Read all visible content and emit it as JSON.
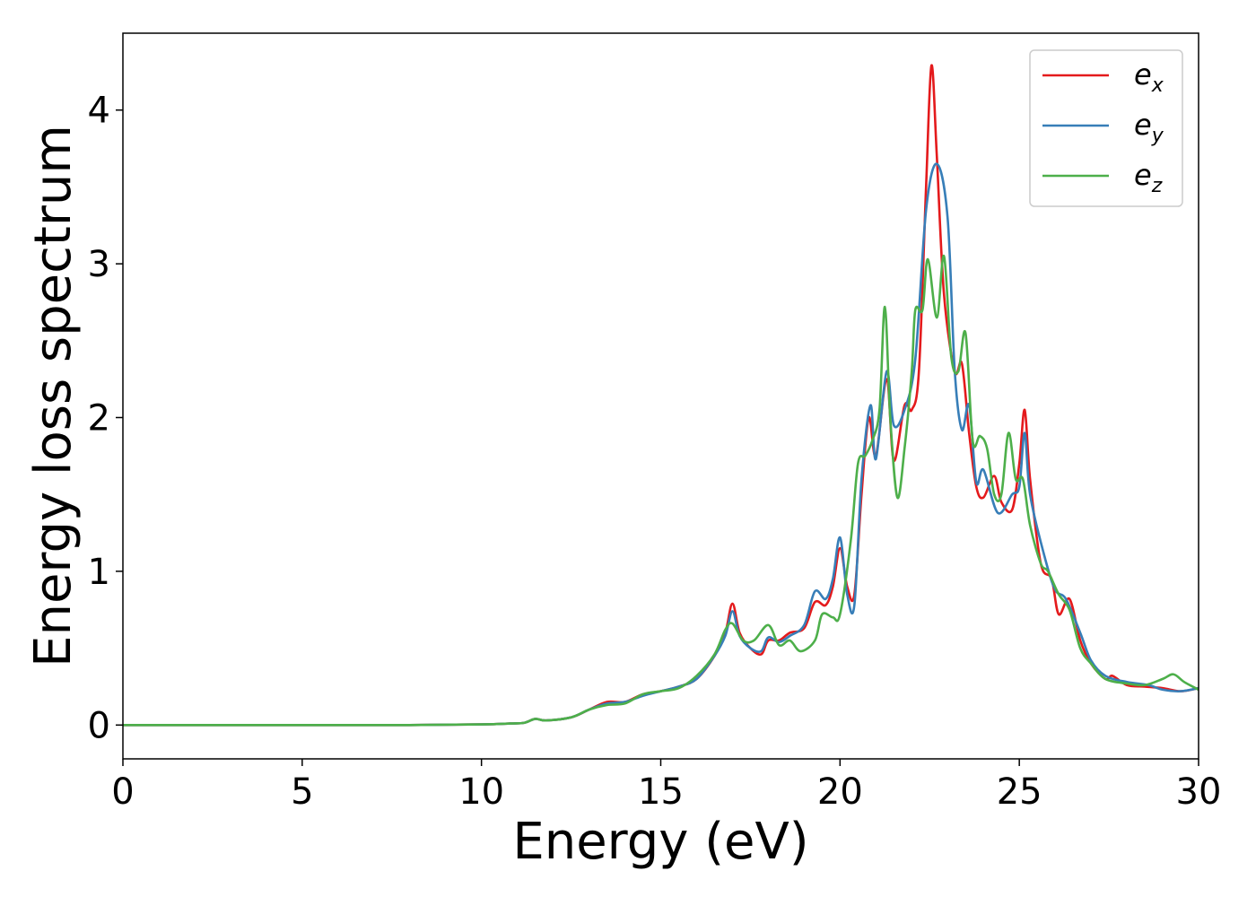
{
  "chart_data": {
    "type": "line",
    "title": "",
    "xlabel": "Energy (eV)",
    "ylabel": "Energy loss spectrum",
    "xlim": [
      0,
      30
    ],
    "ylim": [
      -0.22,
      4.5
    ],
    "xticks": [
      0,
      5,
      10,
      15,
      20,
      25,
      30
    ],
    "yticks": [
      0,
      1,
      2,
      3,
      4
    ],
    "grid": false,
    "legend_position": "top-right",
    "series": [
      {
        "name": "e_x",
        "label_base": "e",
        "label_sub": "x",
        "color": "#e41a1c",
        "points": [
          [
            0,
            0
          ],
          [
            5,
            0
          ],
          [
            8,
            0
          ],
          [
            10,
            0.004
          ],
          [
            10.8,
            0.01
          ],
          [
            11.2,
            0.015
          ],
          [
            11.5,
            0.04
          ],
          [
            11.8,
            0.03
          ],
          [
            12.5,
            0.05
          ],
          [
            13,
            0.1
          ],
          [
            13.5,
            0.15
          ],
          [
            14,
            0.15
          ],
          [
            14.5,
            0.2
          ],
          [
            15,
            0.22
          ],
          [
            15.5,
            0.25
          ],
          [
            16,
            0.3
          ],
          [
            16.5,
            0.45
          ],
          [
            16.8,
            0.6
          ],
          [
            17,
            0.79
          ],
          [
            17.2,
            0.6
          ],
          [
            17.5,
            0.5
          ],
          [
            17.8,
            0.46
          ],
          [
            18,
            0.55
          ],
          [
            18.3,
            0.55
          ],
          [
            18.6,
            0.6
          ],
          [
            19,
            0.63
          ],
          [
            19.3,
            0.8
          ],
          [
            19.6,
            0.78
          ],
          [
            19.8,
            0.9
          ],
          [
            20,
            1.15
          ],
          [
            20.2,
            0.9
          ],
          [
            20.4,
            0.85
          ],
          [
            20.6,
            1.5
          ],
          [
            20.8,
            2.0
          ],
          [
            21.0,
            1.75
          ],
          [
            21.3,
            2.25
          ],
          [
            21.5,
            1.72
          ],
          [
            21.8,
            2.08
          ],
          [
            22.0,
            2.05
          ],
          [
            22.2,
            2.3
          ],
          [
            22.4,
            3.5
          ],
          [
            22.55,
            4.29
          ],
          [
            22.7,
            3.7
          ],
          [
            22.9,
            2.8
          ],
          [
            23.2,
            2.3
          ],
          [
            23.4,
            2.35
          ],
          [
            23.6,
            1.9
          ],
          [
            23.8,
            1.55
          ],
          [
            24.0,
            1.48
          ],
          [
            24.3,
            1.62
          ],
          [
            24.5,
            1.45
          ],
          [
            24.8,
            1.4
          ],
          [
            25.0,
            1.7
          ],
          [
            25.15,
            2.05
          ],
          [
            25.3,
            1.6
          ],
          [
            25.6,
            1.05
          ],
          [
            25.9,
            0.95
          ],
          [
            26.1,
            0.72
          ],
          [
            26.4,
            0.82
          ],
          [
            26.7,
            0.55
          ],
          [
            27.0,
            0.4
          ],
          [
            27.4,
            0.3
          ],
          [
            27.6,
            0.32
          ],
          [
            28.0,
            0.26
          ],
          [
            28.5,
            0.25
          ],
          [
            29,
            0.24
          ],
          [
            29.5,
            0.22
          ],
          [
            30,
            0.24
          ]
        ]
      },
      {
        "name": "e_y",
        "label_base": "e",
        "label_sub": "y",
        "color": "#377eb8",
        "points": [
          [
            0,
            0
          ],
          [
            5,
            0
          ],
          [
            8,
            0
          ],
          [
            10,
            0.004
          ],
          [
            10.8,
            0.01
          ],
          [
            11.2,
            0.015
          ],
          [
            11.5,
            0.04
          ],
          [
            11.8,
            0.03
          ],
          [
            12.5,
            0.05
          ],
          [
            13,
            0.1
          ],
          [
            13.5,
            0.14
          ],
          [
            14,
            0.15
          ],
          [
            14.5,
            0.19
          ],
          [
            15,
            0.22
          ],
          [
            15.5,
            0.25
          ],
          [
            16,
            0.3
          ],
          [
            16.5,
            0.45
          ],
          [
            16.8,
            0.58
          ],
          [
            17,
            0.74
          ],
          [
            17.2,
            0.58
          ],
          [
            17.5,
            0.5
          ],
          [
            17.8,
            0.48
          ],
          [
            18,
            0.57
          ],
          [
            18.3,
            0.54
          ],
          [
            18.6,
            0.58
          ],
          [
            19,
            0.65
          ],
          [
            19.3,
            0.87
          ],
          [
            19.6,
            0.82
          ],
          [
            19.8,
            0.95
          ],
          [
            20,
            1.22
          ],
          [
            20.2,
            0.85
          ],
          [
            20.4,
            0.78
          ],
          [
            20.6,
            1.6
          ],
          [
            20.85,
            2.08
          ],
          [
            21.0,
            1.73
          ],
          [
            21.3,
            2.3
          ],
          [
            21.5,
            1.95
          ],
          [
            21.8,
            2.05
          ],
          [
            22.1,
            2.38
          ],
          [
            22.4,
            3.35
          ],
          [
            22.7,
            3.65
          ],
          [
            23.0,
            3.3
          ],
          [
            23.2,
            2.3
          ],
          [
            23.4,
            1.92
          ],
          [
            23.6,
            2.08
          ],
          [
            23.8,
            1.58
          ],
          [
            24.0,
            1.66
          ],
          [
            24.4,
            1.38
          ],
          [
            24.8,
            1.5
          ],
          [
            25.0,
            1.55
          ],
          [
            25.15,
            1.9
          ],
          [
            25.3,
            1.5
          ],
          [
            25.7,
            1.1
          ],
          [
            26.0,
            0.88
          ],
          [
            26.3,
            0.82
          ],
          [
            26.7,
            0.6
          ],
          [
            27.0,
            0.42
          ],
          [
            27.4,
            0.32
          ],
          [
            28,
            0.28
          ],
          [
            28.6,
            0.26
          ],
          [
            29,
            0.23
          ],
          [
            29.5,
            0.22
          ],
          [
            30,
            0.24
          ]
        ]
      },
      {
        "name": "e_z",
        "label_base": "e",
        "label_sub": "z",
        "color": "#4daf4a",
        "points": [
          [
            0,
            0
          ],
          [
            5,
            0
          ],
          [
            8,
            0
          ],
          [
            10,
            0.004
          ],
          [
            10.8,
            0.01
          ],
          [
            11.2,
            0.015
          ],
          [
            11.5,
            0.04
          ],
          [
            11.8,
            0.03
          ],
          [
            12.5,
            0.05
          ],
          [
            13,
            0.1
          ],
          [
            13.5,
            0.13
          ],
          [
            14,
            0.14
          ],
          [
            14.5,
            0.2
          ],
          [
            15,
            0.22
          ],
          [
            15.5,
            0.24
          ],
          [
            16,
            0.32
          ],
          [
            16.5,
            0.46
          ],
          [
            16.8,
            0.62
          ],
          [
            17,
            0.66
          ],
          [
            17.3,
            0.55
          ],
          [
            17.6,
            0.55
          ],
          [
            18.0,
            0.65
          ],
          [
            18.3,
            0.52
          ],
          [
            18.6,
            0.55
          ],
          [
            18.9,
            0.48
          ],
          [
            19.3,
            0.55
          ],
          [
            19.5,
            0.72
          ],
          [
            19.8,
            0.7
          ],
          [
            20,
            0.72
          ],
          [
            20.3,
            1.2
          ],
          [
            20.5,
            1.7
          ],
          [
            20.7,
            1.75
          ],
          [
            20.9,
            1.85
          ],
          [
            21.1,
            2.05
          ],
          [
            21.25,
            2.72
          ],
          [
            21.4,
            2.0
          ],
          [
            21.6,
            1.48
          ],
          [
            21.8,
            1.8
          ],
          [
            22.0,
            2.3
          ],
          [
            22.1,
            2.7
          ],
          [
            22.3,
            2.7
          ],
          [
            22.45,
            3.03
          ],
          [
            22.7,
            2.65
          ],
          [
            22.9,
            3.05
          ],
          [
            23.1,
            2.4
          ],
          [
            23.3,
            2.3
          ],
          [
            23.5,
            2.55
          ],
          [
            23.7,
            1.85
          ],
          [
            23.9,
            1.88
          ],
          [
            24.1,
            1.8
          ],
          [
            24.3,
            1.5
          ],
          [
            24.5,
            1.5
          ],
          [
            24.7,
            1.9
          ],
          [
            24.9,
            1.6
          ],
          [
            25.1,
            1.6
          ],
          [
            25.3,
            1.3
          ],
          [
            25.6,
            1.05
          ],
          [
            25.8,
            1.0
          ],
          [
            26.1,
            0.85
          ],
          [
            26.4,
            0.75
          ],
          [
            26.7,
            0.5
          ],
          [
            27.0,
            0.4
          ],
          [
            27.4,
            0.3
          ],
          [
            28,
            0.27
          ],
          [
            28.5,
            0.26
          ],
          [
            29,
            0.3
          ],
          [
            29.3,
            0.33
          ],
          [
            29.6,
            0.28
          ],
          [
            30,
            0.23
          ]
        ]
      }
    ]
  }
}
